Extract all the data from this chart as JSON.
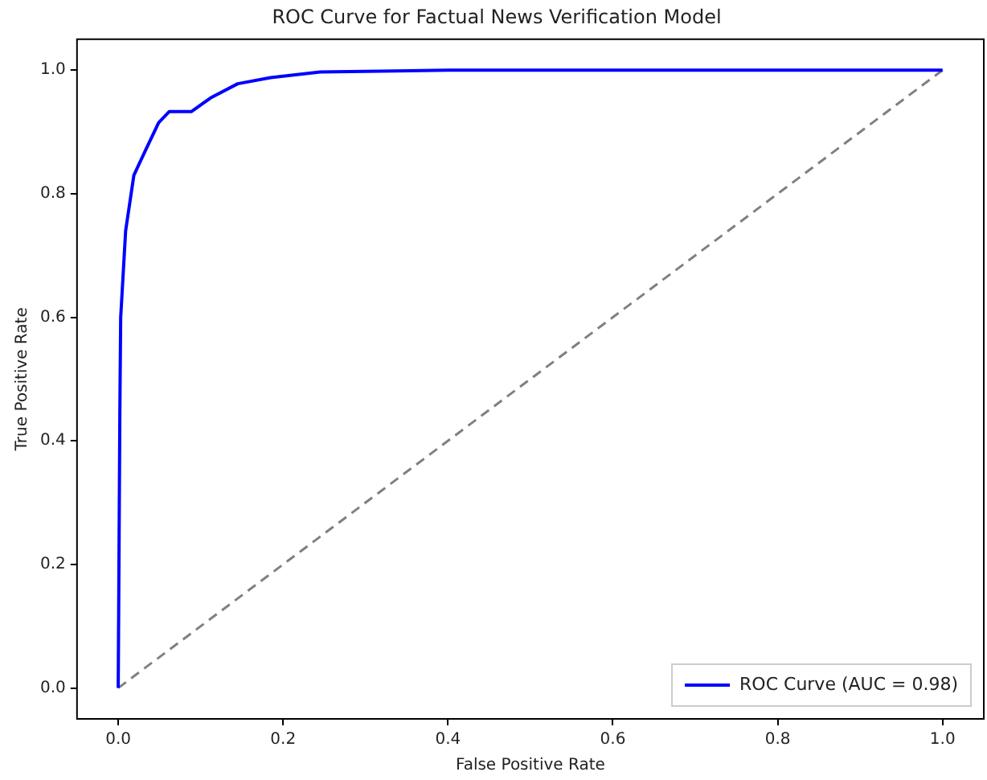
{
  "chart_data": {
    "type": "line",
    "title": "ROC Curve for Factual News Verification Model",
    "xlabel": "False Positive Rate",
    "ylabel": "True Positive Rate",
    "xlim": [
      -0.05,
      1.05
    ],
    "ylim": [
      -0.05,
      1.05
    ],
    "xticks": [
      {
        "value": 0,
        "label": "0.0"
      },
      {
        "value": 0.2,
        "label": "0.2"
      },
      {
        "value": 0.4,
        "label": "0.4"
      },
      {
        "value": 0.6,
        "label": "0.6"
      },
      {
        "value": 0.8,
        "label": "0.8"
      },
      {
        "value": 1,
        "label": "1.0"
      }
    ],
    "yticks": [
      {
        "value": 0,
        "label": "0.0"
      },
      {
        "value": 0.2,
        "label": "0.2"
      },
      {
        "value": 0.4,
        "label": "0.4"
      },
      {
        "value": 0.6,
        "label": "0.6"
      },
      {
        "value": 0.8,
        "label": "0.8"
      },
      {
        "value": 1,
        "label": "1.0"
      }
    ],
    "grid": false,
    "legend": "bottom right",
    "marker": "none",
    "series": [
      {
        "name": "ROC Curve (AUC = 0.98)",
        "color": "#0000ff",
        "line_style": "solid",
        "x": [
          0,
          0.002,
          0.003,
          0.009,
          0.019,
          0.033,
          0.049,
          0.062,
          0.075,
          0.089,
          0.112,
          0.145,
          0.185,
          0.245,
          0.4,
          1
        ],
        "values": [
          0,
          0.45,
          0.6,
          0.74,
          0.83,
          0.87,
          0.915,
          0.933,
          0.933,
          0.933,
          0.955,
          0.978,
          0.988,
          0.997,
          1,
          1
        ]
      },
      {
        "color": "#808080",
        "line_style": "dashed",
        "x": [
          0,
          1
        ],
        "values": [
          0,
          1
        ]
      }
    ]
  }
}
